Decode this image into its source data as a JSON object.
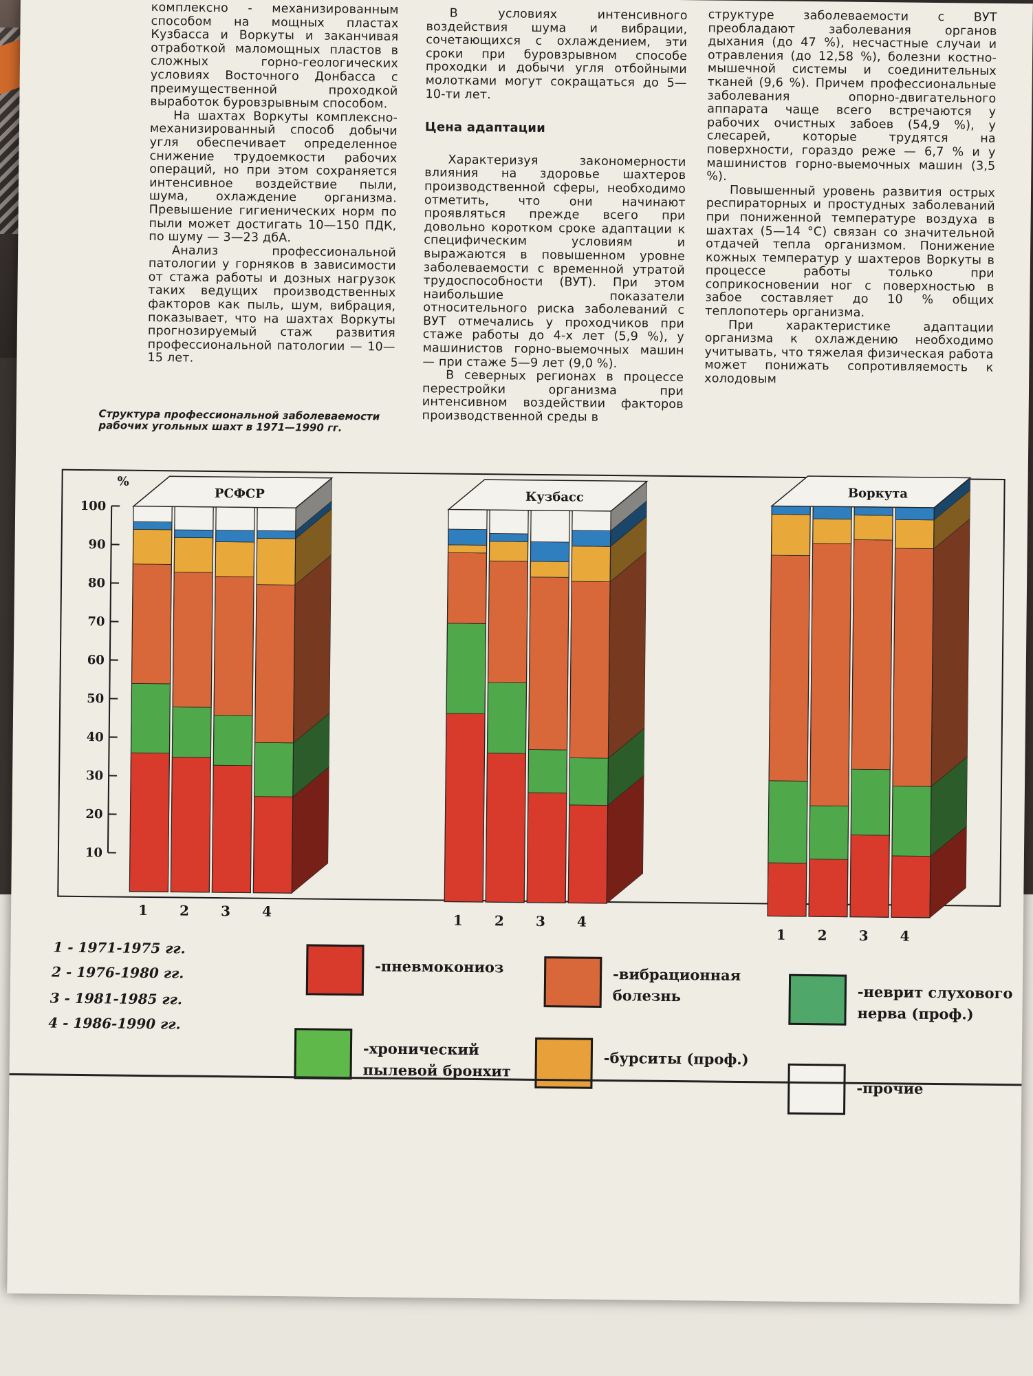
{
  "col1": {
    "p1": "комплексно - механизированным способом на мощных пластах Кузбасса и Воркуты и заканчивая отработкой маломощных пластов в сложных горно-геологических условиях Восточного Донбасса с преимущественной проходкой выработок буровзрывным способом.",
    "p2": "На шахтах Воркуты комплексно-механизированный способ добычи угля обеспечивает определенное снижение трудоемкости рабочих операций, но при этом сохраняется интенсивное воздействие пыли, шума, охлаждение организма. Превышение гигиенических норм по пыли может достигать 10—150 ПДК, по шуму — 3—23 дбА.",
    "p3": "Анализ профессиональной патологии у горняков в зависимости от стажа работы и дозных нагрузок таких ведущих производственных факторов как пыль, шум, вибрация, показывает, что на шахтах Воркуты прогнозируемый стаж развития профессиональной патологии — 10—15 лет.",
    "caption": "Структура профессиональной заболеваемости рабочих угольных шахт в 1971—1990 гг."
  },
  "col2": {
    "p1": "В условиях интенсивного воздействия шума и вибрации, сочетающихся с охлаждением, эти сроки при буровзрывном способе проходки и добычи угля отбойными молотками могут сокращаться до 5—10-ти лет.",
    "heading": "Цена адаптации",
    "p2": "Характеризуя закономерности влияния на здоровье шахтеров производственной сферы, необходимо отметить, что они начинают проявляться прежде всего при довольно коротком сроке адаптации к специфическим условиям и выражаются в повышенном уровне заболеваемости с временной утратой трудоспособности (ВУТ). При этом наибольшие показатели относительного риска заболеваний с ВУТ отмечались у проходчиков при стаже работы до 4-х лет (5,9 %), у машинистов горно-выемочных машин — при стаже 5—9 лет (9,0 %).",
    "p3": "В северных регионах в процессе перестройки организма при интенсивном воздействии факторов производственной среды в"
  },
  "col3": {
    "p1": "структуре заболеваемости с ВУТ преобладают заболевания органов дыхания (до 47 %), несчастные случаи и отравления (до 12,58 %), болезни костно-мышечной системы и соединительных тканей (9,6 %). Причем профессиональные заболевания опорно-двигательного аппарата чаще всего встречаются у рабочих очистных забоев (54,9 %), у слесарей, которые трудятся на поверхности, гораздо реже — 6,7 % и у машинистов горно-выемочных машин (3,5 %).",
    "p2": "Повышенный уровень развития острых респираторных и простудных заболеваний при пониженной температуре воздуха в шахтах (5—14 °С) связан со значительной отдачей тепла организмом. Понижение кожных температур у шахтеров Воркуты в процессе работы только при соприкосновении ног с поверхностью в забое составляет до 10 % общих теплопотерь организма.",
    "p3": "При характеристике адаптации организма к охлаждению необходимо учитывать, что тяжелая физическая работа может понижать сопротивляемость к холодовым"
  },
  "chart_data": {
    "type": "bar",
    "stacked": true,
    "ylabel": "%",
    "yticks": [
      "10",
      "20",
      "30",
      "40",
      "50",
      "60",
      "70",
      "80",
      "90",
      "100"
    ],
    "ylim": [
      0,
      100
    ],
    "categories": [
      "1",
      "2",
      "3",
      "4"
    ],
    "groups": [
      {
        "name": "РСФСР",
        "series": [
          {
            "name": "пневмокониоз",
            "values": [
              36,
              35,
              33,
              25
            ]
          },
          {
            "name": "хронический пылевой бронхит",
            "values": [
              18,
              13,
              13,
              14
            ]
          },
          {
            "name": "вибрационная болезнь",
            "values": [
              31,
              35,
              36,
              41
            ]
          },
          {
            "name": "бурситы (проф.)",
            "values": [
              9,
              9,
              9,
              12
            ]
          },
          {
            "name": "неврит слухового нерва (проф.)",
            "values": [
              2,
              2,
              3,
              2
            ]
          },
          {
            "name": "прочие",
            "values": [
              4,
              6,
              6,
              6
            ]
          }
        ]
      },
      {
        "name": "Кузбасс",
        "series": [
          {
            "name": "пневмокониоз",
            "values": [
              48,
              38,
              28,
              25
            ]
          },
          {
            "name": "хронический пылевой бронхит",
            "values": [
              23,
              18,
              11,
              12
            ]
          },
          {
            "name": "вибрационная болезнь",
            "values": [
              18,
              31,
              44,
              45
            ]
          },
          {
            "name": "бурситы (проф.)",
            "values": [
              2,
              5,
              4,
              9
            ]
          },
          {
            "name": "неврит слухового нерва (проф.)",
            "values": [
              4,
              2,
              5,
              4
            ]
          },
          {
            "name": "прочие",
            "values": [
              5,
              6,
              8,
              5
            ]
          }
        ]
      },
      {
        "name": "Воркута",
        "series": [
          {
            "name": "пневмокониоз",
            "values": [
              13,
              14,
              20,
              15
            ]
          },
          {
            "name": "хронический пылевой бронхит",
            "values": [
              20,
              13,
              16,
              17
            ]
          },
          {
            "name": "вибрационная болезнь",
            "values": [
              55,
              64,
              56,
              58
            ]
          },
          {
            "name": "бурситы (проф.)",
            "values": [
              10,
              6,
              6,
              7
            ]
          },
          {
            "name": "неврит слухового нерва (проф.)",
            "values": [
              2,
              3,
              2,
              3
            ]
          },
          {
            "name": "прочие",
            "values": [
              0,
              0,
              0,
              0
            ]
          }
        ]
      }
    ],
    "colors": {
      "пневмокониоз": "#d83a2c",
      "хронический пылевой бронхит": "#4fa84a",
      "вибрационная болезнь": "#d8683a",
      "бурситы (проф.)": "#e8a83a",
      "неврит слухового нерва (проф.)": "#2f7fbf",
      "прочие": "#f4f2ec"
    }
  },
  "legend": {
    "periods": [
      "1 - 1971-1975 гг.",
      "2 - 1976-1980 гг.",
      "3 - 1981-1985 гг.",
      "4 - 1986-1990 гг."
    ],
    "items": [
      {
        "label1": "-пневмокониоз",
        "label2": "",
        "color": "#d83a2c"
      },
      {
        "label1": "-вибрационная",
        "label2": "болезнь",
        "color": "#d8683a"
      },
      {
        "label1": "-неврит слухового",
        "label2": "нерва (проф.)",
        "color": "#4fa86a"
      },
      {
        "label1": "-хронический",
        "label2": "пылевой бронхит",
        "color": "#5fb84a"
      },
      {
        "label1": "-бурситы (проф.)",
        "label2": "",
        "color": "#e8a03a"
      },
      {
        "label1": "-прочие",
        "label2": "",
        "color": "#f4f2ec"
      }
    ]
  }
}
